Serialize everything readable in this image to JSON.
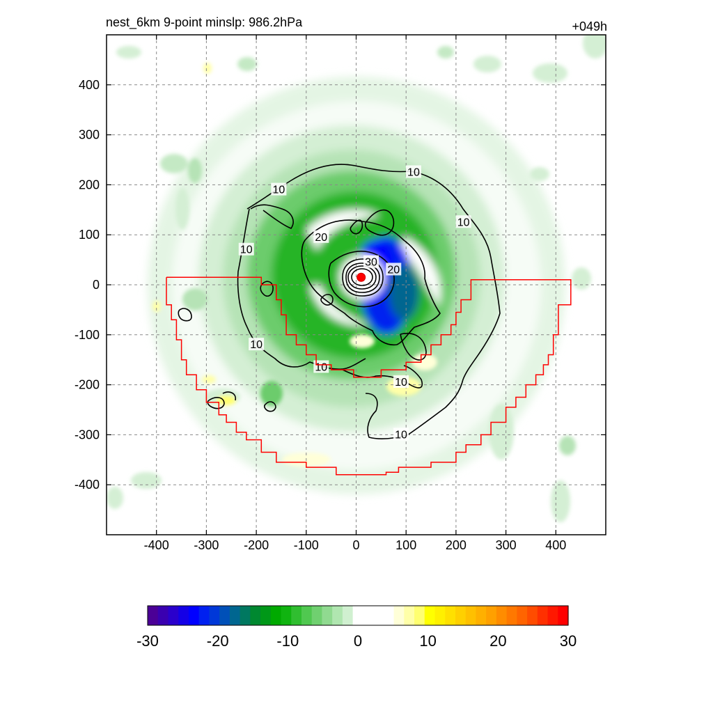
{
  "chart_data": {
    "type": "heatmap",
    "title": "nest_6km  9-point minslp: 986.2hPa",
    "forecast_hour": "+049h",
    "xlim": [
      -500,
      500
    ],
    "ylim": [
      -500,
      500
    ],
    "x_ticks": [
      -400,
      -300,
      -200,
      -100,
      0,
      100,
      200,
      300,
      400
    ],
    "y_ticks": [
      400,
      300,
      200,
      100,
      0,
      -100,
      -200,
      -300,
      -400
    ],
    "grid": true,
    "colorbar": {
      "min": -30,
      "max": 30,
      "ticks": [
        -30,
        -20,
        -10,
        0,
        10,
        20,
        30
      ],
      "colors": [
        "#4b0096",
        "#3a00b0",
        "#2a00cc",
        "#1400e6",
        "#0000ff",
        "#0020f0",
        "#0038d8",
        "#0050b8",
        "#006690",
        "#007860",
        "#008830",
        "#009818",
        "#00aa00",
        "#10b410",
        "#30be30",
        "#50c850",
        "#70d070",
        "#90da90",
        "#b0e6b0",
        "#d0f0d0",
        "#ffffff",
        "#ffffff",
        "#ffffff",
        "#ffffff",
        "#ffffd8",
        "#ffffa8",
        "#ffff70",
        "#ffff00",
        "#fff000",
        "#ffe000",
        "#ffd000",
        "#ffc000",
        "#ffb000",
        "#ffa000",
        "#ff8c00",
        "#ff7800",
        "#ff6400",
        "#ff4c00",
        "#ff3000",
        "#ff1800",
        "#ff0000"
      ]
    },
    "contour_labels": [
      {
        "text": "10",
        "x": 115,
        "y": 225
      },
      {
        "text": "10",
        "x": -155,
        "y": 190
      },
      {
        "text": "10",
        "x": 215,
        "y": 125
      },
      {
        "text": "10",
        "x": -220,
        "y": 70
      },
      {
        "text": "10",
        "x": -200,
        "y": -120
      },
      {
        "text": "10",
        "x": -70,
        "y": -165
      },
      {
        "text": "10",
        "x": 90,
        "y": -195
      },
      {
        "text": "10",
        "x": 90,
        "y": -300
      },
      {
        "text": "20",
        "x": -70,
        "y": 95
      },
      {
        "text": "20",
        "x": 75,
        "y": 30
      },
      {
        "text": "30",
        "x": 30,
        "y": 45
      }
    ],
    "storm_center": {
      "x": 10,
      "y": 15
    },
    "nest_boundary": [
      [
        -380,
        15
      ],
      [
        -190,
        15
      ],
      [
        -190,
        0
      ],
      [
        -160,
        0
      ],
      [
        -160,
        -30
      ],
      [
        -150,
        -30
      ],
      [
        -150,
        -60
      ],
      [
        -140,
        -60
      ],
      [
        -140,
        -100
      ],
      [
        -120,
        -100
      ],
      [
        -120,
        -120
      ],
      [
        -100,
        -120
      ],
      [
        -100,
        -140
      ],
      [
        -80,
        -140
      ],
      [
        -80,
        -160
      ],
      [
        -50,
        -160
      ],
      [
        -50,
        -170
      ],
      [
        -5,
        -170
      ],
      [
        -5,
        -185
      ],
      [
        50,
        -185
      ],
      [
        50,
        -170
      ],
      [
        100,
        -170
      ],
      [
        100,
        -155
      ],
      [
        130,
        -155
      ],
      [
        130,
        -140
      ],
      [
        150,
        -140
      ],
      [
        150,
        -120
      ],
      [
        170,
        -120
      ],
      [
        170,
        -100
      ],
      [
        190,
        -100
      ],
      [
        190,
        -80
      ],
      [
        200,
        -80
      ],
      [
        200,
        -55
      ],
      [
        210,
        -55
      ],
      [
        210,
        -30
      ],
      [
        230,
        -30
      ],
      [
        230,
        10
      ],
      [
        430,
        10
      ],
      [
        430,
        -40
      ],
      [
        405,
        -40
      ],
      [
        405,
        -100
      ],
      [
        395,
        -100
      ],
      [
        395,
        -140
      ],
      [
        385,
        -140
      ],
      [
        385,
        -160
      ],
      [
        375,
        -160
      ],
      [
        375,
        -180
      ],
      [
        360,
        -180
      ],
      [
        360,
        -200
      ],
      [
        340,
        -200
      ],
      [
        340,
        -225
      ],
      [
        320,
        -225
      ],
      [
        320,
        -245
      ],
      [
        300,
        -245
      ],
      [
        300,
        -275
      ],
      [
        270,
        -275
      ],
      [
        270,
        -300
      ],
      [
        250,
        -300
      ],
      [
        250,
        -320
      ],
      [
        220,
        -320
      ],
      [
        220,
        -335
      ],
      [
        200,
        -335
      ],
      [
        200,
        -355
      ],
      [
        150,
        -355
      ],
      [
        150,
        -365
      ],
      [
        85,
        -365
      ],
      [
        85,
        -375
      ],
      [
        60,
        -375
      ],
      [
        60,
        -380
      ],
      [
        -40,
        -380
      ],
      [
        -40,
        -365
      ],
      [
        -100,
        -365
      ],
      [
        -100,
        -355
      ],
      [
        -160,
        -355
      ],
      [
        -160,
        -335
      ],
      [
        -190,
        -335
      ],
      [
        -190,
        -310
      ],
      [
        -220,
        -310
      ],
      [
        -220,
        -295
      ],
      [
        -240,
        -295
      ],
      [
        -240,
        -275
      ],
      [
        -260,
        -275
      ],
      [
        -260,
        -260
      ],
      [
        -275,
        -260
      ],
      [
        -275,
        -235
      ],
      [
        -300,
        -235
      ],
      [
        -300,
        -210
      ],
      [
        -320,
        -210
      ],
      [
        -320,
        -180
      ],
      [
        -340,
        -180
      ],
      [
        -340,
        -150
      ],
      [
        -350,
        -150
      ],
      [
        -350,
        -110
      ],
      [
        -360,
        -110
      ],
      [
        -360,
        -70
      ],
      [
        -370,
        -70
      ],
      [
        -370,
        -40
      ],
      [
        -380,
        -40
      ],
      [
        -380,
        15
      ]
    ]
  }
}
